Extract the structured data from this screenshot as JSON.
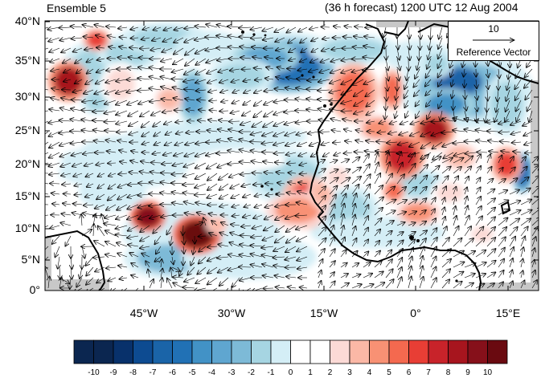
{
  "titles": {
    "left": "Ensemble 5",
    "right": "(36 h forecast) 1200 UTC 12 Aug 2004"
  },
  "map": {
    "lon_range": [
      -62,
      20
    ],
    "lat_range": [
      0,
      40
    ],
    "lat_ticks": [
      "0°",
      "5°N",
      "10°N",
      "15°N",
      "20°N",
      "25°N",
      "30°N",
      "35°N",
      "40°N"
    ],
    "lon_ticks": [
      "45°W",
      "30°W",
      "15°W",
      "0°",
      "15°E"
    ]
  },
  "reference_vector": {
    "magnitude": "10",
    "label": "Reference Vector"
  },
  "colorbar": {
    "labels": [
      "-10",
      "-9",
      "-8",
      "-7",
      "-6",
      "-5",
      "-4",
      "-3",
      "-2",
      "-1",
      "0",
      "1",
      "2",
      "3",
      "4",
      "5",
      "6",
      "7",
      "8",
      "9",
      "10"
    ],
    "colors": [
      "#0b2650",
      "#08316b",
      "#0d4b91",
      "#1a64a8",
      "#2171b5",
      "#4292c6",
      "#5fa6d0",
      "#7dbad7",
      "#a6d5e2",
      "#d4eef6",
      "#ffffff",
      "#ffffff",
      "#fcdad6",
      "#fbb8a6",
      "#f89174",
      "#f4694f",
      "#e83e35",
      "#c8232a",
      "#a7151e",
      "#86101a",
      "#6a0a10"
    ]
  },
  "colors": {
    "land_mask": "#c8c8c8",
    "positive_accent": "#c8232a",
    "negative_accent": "#2171b5"
  }
}
